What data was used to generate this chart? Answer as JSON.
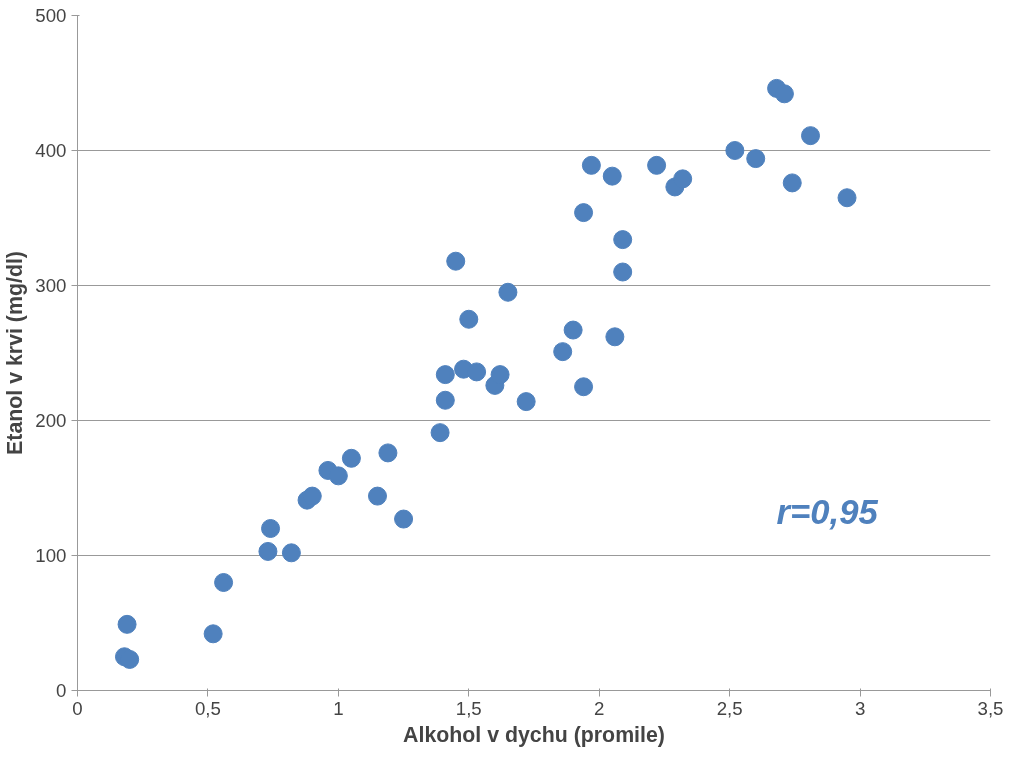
{
  "chart_data": {
    "type": "scatter",
    "xlabel": "Alkohol v dychu (promile)",
    "ylabel": "Etanol v krvi (mg/dl)",
    "annotations": [
      "r=0,95"
    ],
    "xlim": [
      0,
      3.5
    ],
    "ylim": [
      0,
      500
    ],
    "xticks": [
      0,
      {
        "value": 0.5,
        "label": "0,5"
      },
      1,
      {
        "value": 1.5,
        "label": "1,5"
      },
      2,
      {
        "value": 2.5,
        "label": "2,5"
      },
      3,
      {
        "value": 3.5,
        "label": "3,5"
      }
    ],
    "yticks": [
      0,
      100,
      200,
      300,
      400,
      500
    ],
    "grid": "y",
    "marker": "circle",
    "series": [
      {
        "color": "#4f81bd",
        "x": [
          0.19,
          0.18,
          0.2,
          0.52,
          0.56,
          0.73,
          0.74,
          0.82,
          0.88,
          0.9,
          0.96,
          1.0,
          1.05,
          1.19,
          1.15,
          1.25,
          1.39,
          1.41,
          1.41,
          1.45,
          1.48,
          1.5,
          1.53,
          1.6,
          1.62,
          1.65,
          1.72,
          1.86,
          1.9,
          1.94,
          1.94,
          1.97,
          2.05,
          2.06,
          2.09,
          2.09,
          2.22,
          2.29,
          2.32,
          2.52,
          2.6,
          2.68,
          2.71,
          2.74,
          2.81,
          2.95
        ],
        "values": [
          49,
          25,
          23,
          42,
          80,
          103,
          120,
          102,
          141,
          144,
          163,
          159,
          172,
          176,
          144,
          127,
          191,
          215,
          234,
          318,
          238,
          275,
          236,
          226,
          234,
          295,
          214,
          251,
          267,
          225,
          354,
          389,
          381,
          262,
          310,
          334,
          389,
          373,
          379,
          400,
          394,
          446,
          442,
          376,
          411,
          365
        ]
      }
    ]
  }
}
